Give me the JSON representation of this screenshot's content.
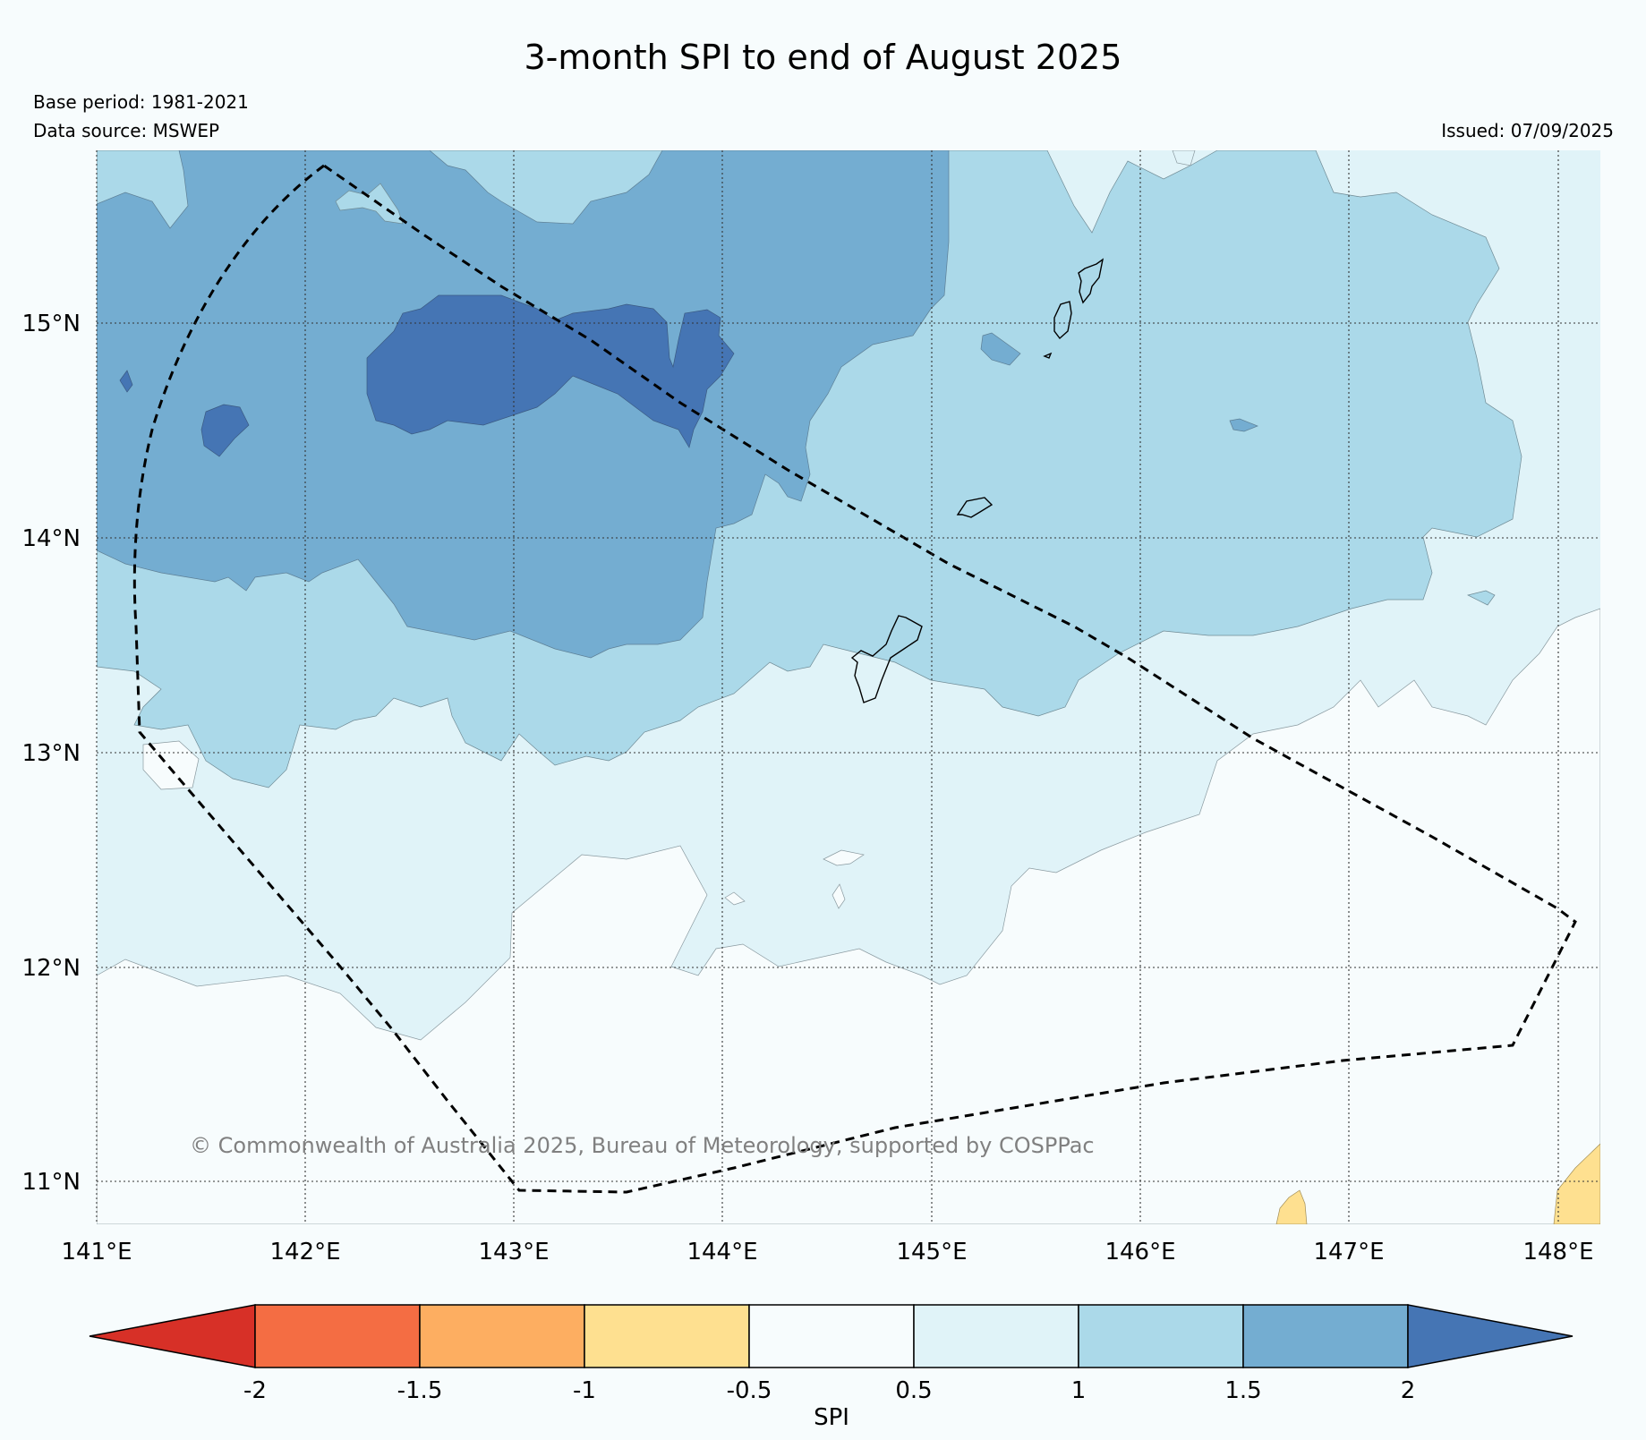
{
  "title": "3-month SPI to end of August 2025",
  "base_period": "Base period: 1981-2021",
  "data_source": "Data source: MSWEP",
  "issued": "Issued: 07/09/2025",
  "copyright": "© Commonwealth of Australia 2025, Bureau of Meteorology, supported by COSPPac",
  "map": {
    "lat_labels": [
      "15°N",
      "14°N",
      "13°N",
      "12°N",
      "11°N"
    ],
    "lon_labels": [
      "141°E",
      "142°E",
      "143°E",
      "144°E",
      "145°E",
      "146°E",
      "147°E",
      "148°E"
    ]
  },
  "colorbar": {
    "label": "SPI",
    "ticks": [
      "-2",
      "-1.5",
      "-1",
      "-0.5",
      "0.5",
      "1",
      "1.5",
      "2"
    ],
    "colors": [
      "#d73027",
      "#f46d43",
      "#fdae61",
      "#fee090",
      "#f7fcfd",
      "#e0f3f8",
      "#abd9e9",
      "#74add1",
      "#4575b4"
    ]
  }
}
